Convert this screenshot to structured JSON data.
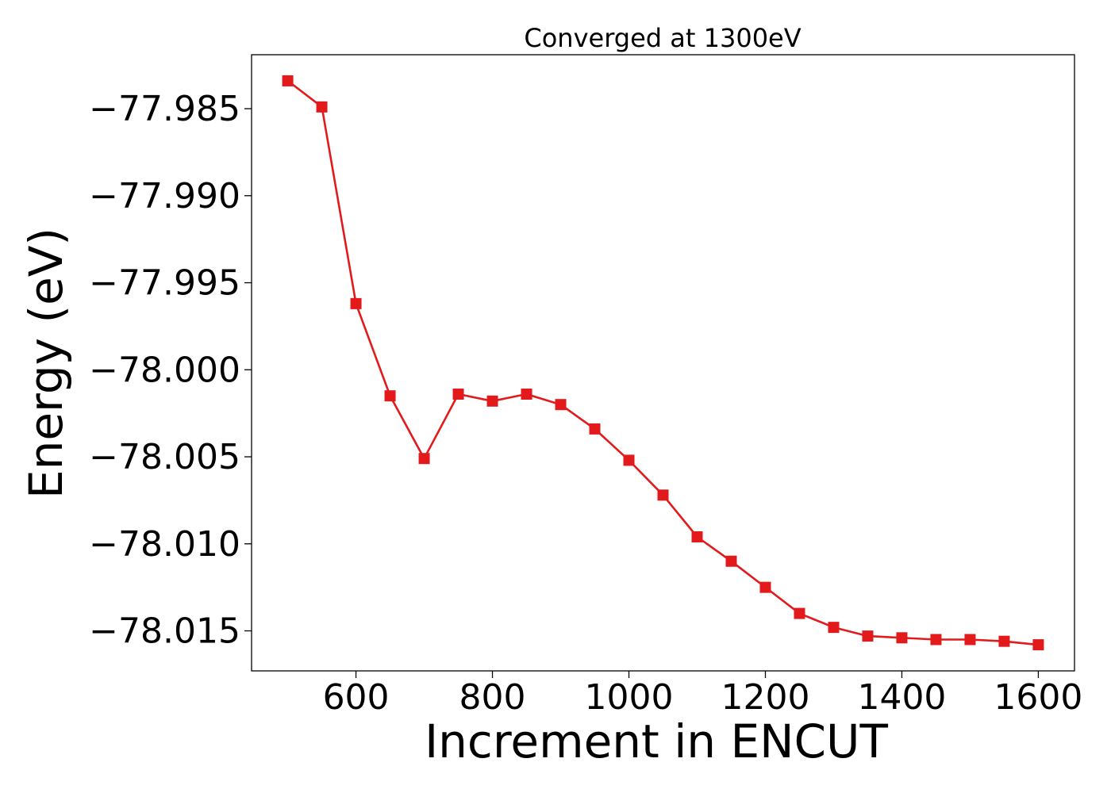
{
  "chart_data": {
    "type": "line",
    "title": "Converged at 1300eV",
    "xlabel": "Increment in ENCUT",
    "ylabel": "Energy (eV)",
    "xlim": [
      447,
      1653
    ],
    "ylim": [
      -78.0173,
      -77.9819
    ],
    "xticks": [
      600,
      800,
      1000,
      1200,
      1400,
      1600
    ],
    "xtick_labels": [
      "600",
      "800",
      "1000",
      "1200",
      "1400",
      "1600"
    ],
    "yticks": [
      -77.985,
      -77.99,
      -77.995,
      -78.0,
      -78.005,
      -78.01,
      -78.015
    ],
    "ytick_labels": [
      "−77.985",
      "−77.990",
      "−77.995",
      "−78.000",
      "−78.005",
      "−78.010",
      "−78.015"
    ],
    "grid": false,
    "legend": "none",
    "series": [
      {
        "color": "#e31a1c",
        "marker": "square",
        "x": [
          500,
          550,
          600,
          650,
          700,
          750,
          800,
          850,
          900,
          950,
          1000,
          1050,
          1100,
          1150,
          1200,
          1250,
          1300,
          1350,
          1400,
          1450,
          1500,
          1550,
          1600
        ],
        "y": [
          -77.9834,
          -77.9849,
          -77.9962,
          -78.0015,
          -78.0051,
          -78.0014,
          -78.0018,
          -78.0014,
          -78.002,
          -78.0034,
          -78.0052,
          -78.0072,
          -78.0096,
          -78.011,
          -78.0125,
          -78.014,
          -78.0148,
          -78.0153,
          -78.0154,
          -78.0155,
          -78.0155,
          -78.0156,
          -78.0158
        ]
      }
    ]
  }
}
